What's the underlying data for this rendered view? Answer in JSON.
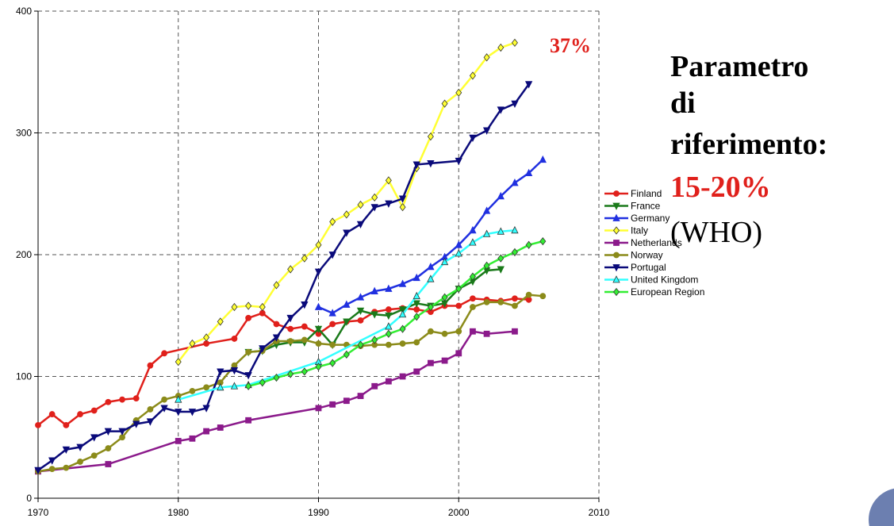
{
  "chart_data": {
    "type": "line",
    "xlim": [
      1970,
      2010
    ],
    "xticks": [
      1970,
      1980,
      1990,
      2000,
      2010
    ],
    "ylim": [
      0,
      400
    ],
    "yticks": [
      0,
      100,
      200,
      300,
      400
    ],
    "grid": true,
    "legend": "right",
    "annotations": [
      "37%",
      "Parametro",
      "di",
      "riferimento:",
      "15-20%",
      "(WHO)"
    ],
    "series": [
      {
        "name": "Finland",
        "color": "#e0201b",
        "marker": "circle",
        "x": [
          1970,
          1971,
          1972,
          1973,
          1974,
          1975,
          1976,
          1977,
          1978,
          1979,
          1982,
          1984,
          1985,
          1986,
          1987,
          1988,
          1989,
          1990,
          1991,
          1992,
          1993,
          1994,
          1995,
          1996,
          1997,
          1998,
          1999,
          2000,
          2001,
          2002,
          2003,
          2004,
          2005
        ],
        "values": [
          60,
          69,
          60,
          69,
          72,
          79,
          81,
          82,
          109,
          119,
          127,
          131,
          148,
          152,
          143,
          139,
          141,
          135,
          143,
          145,
          146,
          153,
          155,
          156,
          155,
          153,
          158,
          158,
          164,
          163,
          162,
          164,
          163
        ]
      },
      {
        "name": "France",
        "color": "#1a7a1a",
        "marker": "triangle-down",
        "x": [
          1985,
          1986,
          1987,
          1988,
          1989,
          1990,
          1991,
          1992,
          1993,
          1994,
          1995,
          1996,
          1997,
          1998,
          1999,
          2000,
          2001,
          2002,
          2003
        ],
        "values": [
          120,
          121,
          126,
          128,
          128,
          139,
          126,
          145,
          154,
          151,
          150,
          155,
          160,
          158,
          160,
          172,
          178,
          187,
          188
        ]
      },
      {
        "name": "Germany",
        "color": "#2030e0",
        "marker": "triangle-up",
        "x": [
          1990,
          1991,
          1992,
          1993,
          1994,
          1995,
          1996,
          1997,
          1998,
          1999,
          2000,
          2001,
          2002,
          2003,
          2004,
          2005,
          2006
        ],
        "values": [
          157,
          152,
          159,
          165,
          170,
          172,
          176,
          181,
          190,
          198,
          208,
          220,
          236,
          248,
          259,
          267,
          278
        ]
      },
      {
        "name": "Italy",
        "color": "#ffff33",
        "marker": "diamond",
        "x": [
          1980,
          1981,
          1982,
          1983,
          1984,
          1985,
          1986,
          1987,
          1988,
          1989,
          1990,
          1991,
          1992,
          1993,
          1994,
          1995,
          1996,
          1997,
          1998,
          1999,
          2000,
          2001,
          2002,
          2003,
          2004
        ],
        "values": [
          112,
          127,
          132,
          145,
          157,
          158,
          157,
          175,
          188,
          197,
          208,
          227,
          233,
          241,
          247,
          261,
          239,
          271,
          297,
          324,
          333,
          347,
          362,
          370,
          374
        ]
      },
      {
        "name": "Netherlands",
        "color": "#8b1a8b",
        "marker": "square",
        "x": [
          1970,
          1975,
          1980,
          1981,
          1982,
          1983,
          1985,
          1990,
          1991,
          1992,
          1993,
          1994,
          1995,
          1996,
          1997,
          1998,
          1999,
          2000,
          2001,
          2002,
          2004
        ],
        "values": [
          22,
          28,
          47,
          49,
          55,
          58,
          64,
          74,
          77,
          80,
          84,
          92,
          96,
          100,
          104,
          111,
          113,
          119,
          137,
          135,
          137
        ]
      },
      {
        "name": "Norway",
        "color": "#8b8b1a",
        "marker": "circle",
        "x": [
          1970,
          1971,
          1972,
          1973,
          1974,
          1975,
          1976,
          1977,
          1978,
          1979,
          1980,
          1981,
          1982,
          1983,
          1984,
          1985,
          1986,
          1987,
          1988,
          1989,
          1990,
          1991,
          1992,
          1993,
          1994,
          1995,
          1996,
          1997,
          1998,
          1999,
          2000,
          2001,
          2002,
          2003,
          2004,
          2005,
          2006
        ],
        "values": [
          22,
          24,
          25,
          30,
          35,
          41,
          50,
          64,
          73,
          81,
          84,
          88,
          91,
          95,
          109,
          120,
          121,
          129,
          129,
          130,
          127,
          126,
          126,
          125,
          126,
          126,
          127,
          128,
          137,
          135,
          137,
          157,
          161,
          161,
          158,
          167,
          166
        ]
      },
      {
        "name": "Portugal",
        "color": "#0a0a7a",
        "marker": "triangle-down",
        "x": [
          1970,
          1971,
          1972,
          1973,
          1974,
          1975,
          1976,
          1977,
          1978,
          1979,
          1980,
          1981,
          1982,
          1983,
          1984,
          1985,
          1986,
          1987,
          1988,
          1989,
          1990,
          1991,
          1992,
          1993,
          1994,
          1995,
          1996,
          1997,
          1998,
          2000,
          2001,
          2002,
          2003,
          2004,
          2005
        ],
        "values": [
          23,
          31,
          40,
          42,
          50,
          55,
          55,
          61,
          63,
          74,
          71,
          71,
          74,
          104,
          105,
          101,
          123,
          132,
          148,
          159,
          186,
          200,
          218,
          225,
          239,
          242,
          246,
          274,
          275,
          277,
          296,
          302,
          319,
          324,
          340
        ]
      },
      {
        "name": "United Kingdom",
        "color": "#33ffff",
        "marker": "triangle-up",
        "x": [
          1980,
          1983,
          1984,
          1985,
          1990,
          1995,
          1996,
          1997,
          1998,
          1999,
          2000,
          2001,
          2002,
          2003,
          2004
        ],
        "values": [
          81,
          91,
          92,
          93,
          112,
          141,
          151,
          166,
          180,
          194,
          201,
          210,
          217,
          219,
          220
        ]
      },
      {
        "name": "European Region",
        "color": "#33ee33",
        "marker": "diamond",
        "x": [
          1985,
          1986,
          1987,
          1988,
          1989,
          1990,
          1991,
          1992,
          1993,
          1994,
          1995,
          1996,
          1997,
          1998,
          1999,
          2000,
          2001,
          2002,
          2003,
          2004,
          2005,
          2006
        ],
        "values": [
          92,
          95,
          99,
          102,
          104,
          108,
          111,
          118,
          126,
          130,
          135,
          139,
          149,
          157,
          165,
          172,
          182,
          191,
          197,
          202,
          208,
          211
        ]
      }
    ]
  }
}
